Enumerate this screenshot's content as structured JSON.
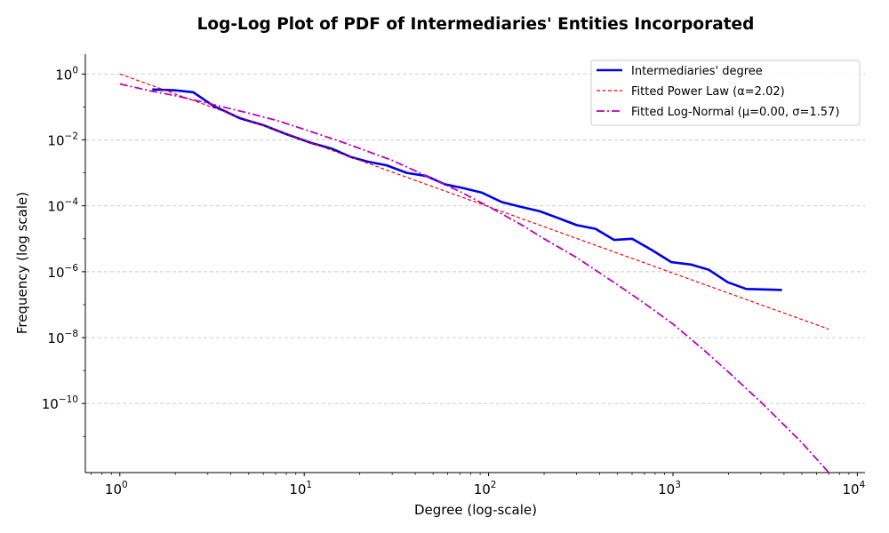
{
  "chart_data": {
    "type": "line",
    "title": "Log-Log Plot of PDF of Intermediaries' Entities Incorporated",
    "xlabel": "Degree (log-scale)",
    "ylabel": "Frequency (log scale)",
    "xscale": "log",
    "yscale": "log",
    "xlim": [
      0.65,
      11000
    ],
    "ylim": [
      8e-13,
      4
    ],
    "x_ticks": [
      {
        "base": "10",
        "exp": "0"
      },
      {
        "base": "10",
        "exp": "1"
      },
      {
        "base": "10",
        "exp": "2"
      },
      {
        "base": "10",
        "exp": "3"
      },
      {
        "base": "10",
        "exp": "4"
      }
    ],
    "y_ticks": [
      {
        "base": "10",
        "exp": "0"
      },
      {
        "base": "10",
        "exp": "−2"
      },
      {
        "base": "10",
        "exp": "−4"
      },
      {
        "base": "10",
        "exp": "−6"
      },
      {
        "base": "10",
        "exp": "−8"
      },
      {
        "base": "10",
        "exp": "−10"
      }
    ],
    "grid": "y-dashed",
    "legend_position": "top-right",
    "series": [
      {
        "name": "Intermediaries' degree",
        "style": "solid",
        "color": "#0000ee",
        "x": [
          1.5,
          2.0,
          2.5,
          3.2,
          4.5,
          6.0,
          8.0,
          11.0,
          14.0,
          18.0,
          22.0,
          28.0,
          36.0,
          46.0,
          58.0,
          72.0,
          92.0,
          118.0,
          150.0,
          190.0,
          240.0,
          300.0,
          380.0,
          480.0,
          600.0,
          770.0,
          980.0,
          1250.0,
          1560.0,
          1980.0,
          2500.0,
          3100.0,
          3900.0
        ],
        "y": [
          0.34,
          0.32,
          0.28,
          0.11,
          0.045,
          0.028,
          0.015,
          0.008,
          0.0055,
          0.003,
          0.0022,
          0.0017,
          0.001,
          0.0008,
          0.00045,
          0.00035,
          0.00025,
          0.00013,
          9.3e-05,
          6.8e-05,
          4.2e-05,
          2.6e-05,
          2e-05,
          9.2e-06,
          1e-05,
          4.5e-06,
          1.95e-06,
          1.65e-06,
          1.15e-06,
          4.8e-07,
          3e-07,
          2.9e-07,
          2.8e-07
        ]
      },
      {
        "name": "Fitted Power Law (α=2.02)",
        "style": "dashed",
        "color": "#ff0000",
        "x": [
          1.0,
          7000.0
        ],
        "y": [
          1.0,
          1.8e-08
        ]
      },
      {
        "name": "Fitted Log-Normal (μ=0.00, σ=1.57)",
        "style": "dashdot",
        "color": "#bf00bf",
        "x": [
          1.0,
          1.5,
          2.0,
          3.0,
          5.0,
          7.0,
          10.0,
          15.0,
          20.0,
          30.0,
          50.0,
          70.0,
          100.0,
          150.0,
          200.0,
          300.0,
          500.0,
          700.0,
          1000.0,
          1500.0,
          2000.0,
          3000.0,
          5000.0,
          7000.0
        ],
        "y": [
          0.5,
          0.3,
          0.22,
          0.13,
          0.065,
          0.04,
          0.021,
          0.0098,
          0.0055,
          0.0024,
          0.00065,
          0.00027,
          9.5e-05,
          2.7e-05,
          1e-05,
          2.7e-06,
          4e-07,
          1.1e-07,
          2.6e-08,
          3.8e-09,
          9e-10,
          1.1e-10,
          6.5e-12,
          8e-13
        ]
      }
    ]
  }
}
